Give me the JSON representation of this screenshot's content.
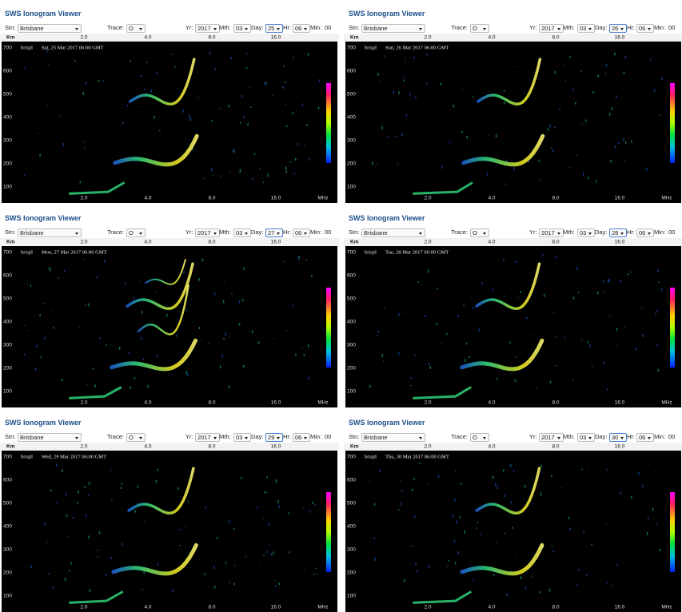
{
  "axis": {
    "height_unit": "Km",
    "heights": [
      "700",
      "600",
      "500",
      "400",
      "300",
      "200",
      "100"
    ],
    "frequencies": [
      "2.0",
      "4.0",
      "8.0",
      "16.0"
    ],
    "frequency_unit": "MHz"
  },
  "panels": [
    {
      "title": "SWS Ionogram Viewer",
      "controls": {
        "station_label": "Stn:",
        "station": "Brisbane",
        "trace_label": "Trace:",
        "trace": "O",
        "year_label": "Yr:",
        "year": "2017",
        "month_label": "Mth:",
        "month": "03",
        "day_label": "Day:",
        "day": "25",
        "hour_label": "Hr:",
        "hour": "06",
        "minute_label": "Min:",
        "minute": "00"
      },
      "station_code": "brisjd",
      "timestamp": "Sat, 25 Mar 2017 06:00 GMT"
    },
    {
      "title": "SWS Ionogram Viewer",
      "controls": {
        "station_label": "Stn:",
        "station": "Brisbane",
        "trace_label": "Trace:",
        "trace": "O",
        "year_label": "Yr:",
        "year": "2017",
        "month_label": "Mth:",
        "month": "03",
        "day_label": "Day:",
        "day": "26",
        "hour_label": "Hr:",
        "hour": "06",
        "minute_label": "Min:",
        "minute": "00"
      },
      "station_code": "brisjd",
      "timestamp": "Sun, 26 Mar 2017 06:00 GMT"
    },
    {
      "title": "SWS Ionogram Viewer",
      "controls": {
        "station_label": "Stn:",
        "station": "Brisbane",
        "trace_label": "Trace:",
        "trace": "O",
        "year_label": "Yr:",
        "year": "2017",
        "month_label": "Mth:",
        "month": "03",
        "day_label": "Day:",
        "day": "27",
        "hour_label": "Hr:",
        "hour": "06",
        "minute_label": "Min:",
        "minute": "00"
      },
      "station_code": "brisjd",
      "timestamp": "Mon, 27 Mar 2017 06:00 GMT"
    },
    {
      "title": "SWS Ionogram Viewer",
      "controls": {
        "station_label": "Stn:",
        "station": "Brisbane",
        "trace_label": "Trace:",
        "trace": "O",
        "year_label": "Yr:",
        "year": "2017",
        "month_label": "Mth:",
        "month": "03",
        "day_label": "Day:",
        "day": "28",
        "hour_label": "Hr:",
        "hour": "06",
        "minute_label": "Min:",
        "minute": "00"
      },
      "station_code": "brisjd",
      "timestamp": "Tue, 28 Mar 2017 06:00 GMT"
    },
    {
      "title": "SWS Ionogram Viewer",
      "controls": {
        "station_label": "Stn:",
        "station": "Brisbane",
        "trace_label": "Trace:",
        "trace": "O",
        "year_label": "Yr:",
        "year": "2017",
        "month_label": "Mth:",
        "month": "03",
        "day_label": "Day:",
        "day": "29",
        "hour_label": "Hr:",
        "hour": "06",
        "minute_label": "Min:",
        "minute": "00"
      },
      "station_code": "brisjd",
      "timestamp": "Wed, 29 Mar 2017 06:00 GMT"
    },
    {
      "title": "SWS Ionogram Viewer",
      "controls": {
        "station_label": "Stn:",
        "station": "Brisbane",
        "trace_label": "Trace:",
        "trace": "O",
        "year_label": "Yr:",
        "year": "2017",
        "month_label": "Mth:",
        "month": "03",
        "day_label": "Day:",
        "day": "30",
        "hour_label": "Hr:",
        "hour": "06",
        "minute_label": "Min:",
        "minute": "00"
      },
      "station_code": "brisjd",
      "timestamp": "Thu, 30 Mar 2017 06:00 GMT"
    }
  ]
}
